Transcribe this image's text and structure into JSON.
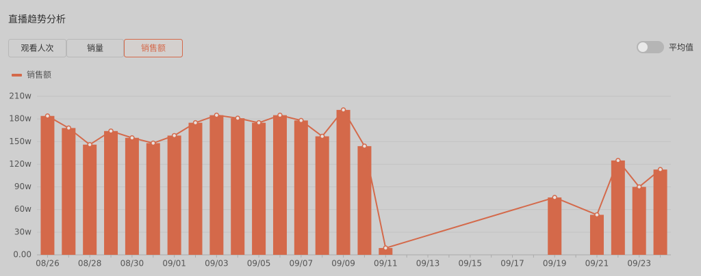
{
  "header": {
    "title": "直播趋势分析",
    "tabs": [
      "观看人次",
      "销量",
      "销售额"
    ],
    "active_tab": 2,
    "toggle_label": "平均值"
  },
  "chart_data": {
    "type": "bar-line",
    "categories": [
      "08/26",
      null,
      "08/28",
      null,
      "08/30",
      null,
      "09/01",
      null,
      "09/03",
      null,
      "09/05",
      null,
      "09/07",
      null,
      "09/09",
      null,
      "09/11",
      null,
      "09/13",
      null,
      "09/15",
      null,
      "09/17",
      null,
      "09/19",
      null,
      "09/21",
      null,
      "09/23",
      null
    ],
    "series": [
      {
        "name": "销售额",
        "color": "#d4694a",
        "values": [
          184,
          168,
          146,
          164,
          155,
          148,
          158,
          175,
          185,
          181,
          175,
          185,
          178,
          157,
          192,
          144,
          9,
          null,
          null,
          null,
          null,
          null,
          null,
          null,
          76,
          null,
          53,
          125,
          90,
          113
        ]
      }
    ],
    "connect_nulls": true,
    "ylim": [
      0,
      210
    ],
    "yticks": [
      {
        "value": 0,
        "label": "0.00"
      },
      {
        "value": 30,
        "label": "30w"
      },
      {
        "value": 60,
        "label": "60w"
      },
      {
        "value": 90,
        "label": "90w"
      },
      {
        "value": 120,
        "label": "120w"
      },
      {
        "value": 150,
        "label": "150w"
      },
      {
        "value": 180,
        "label": "180w"
      },
      {
        "value": 210,
        "label": "210w"
      }
    ],
    "grid": true
  }
}
